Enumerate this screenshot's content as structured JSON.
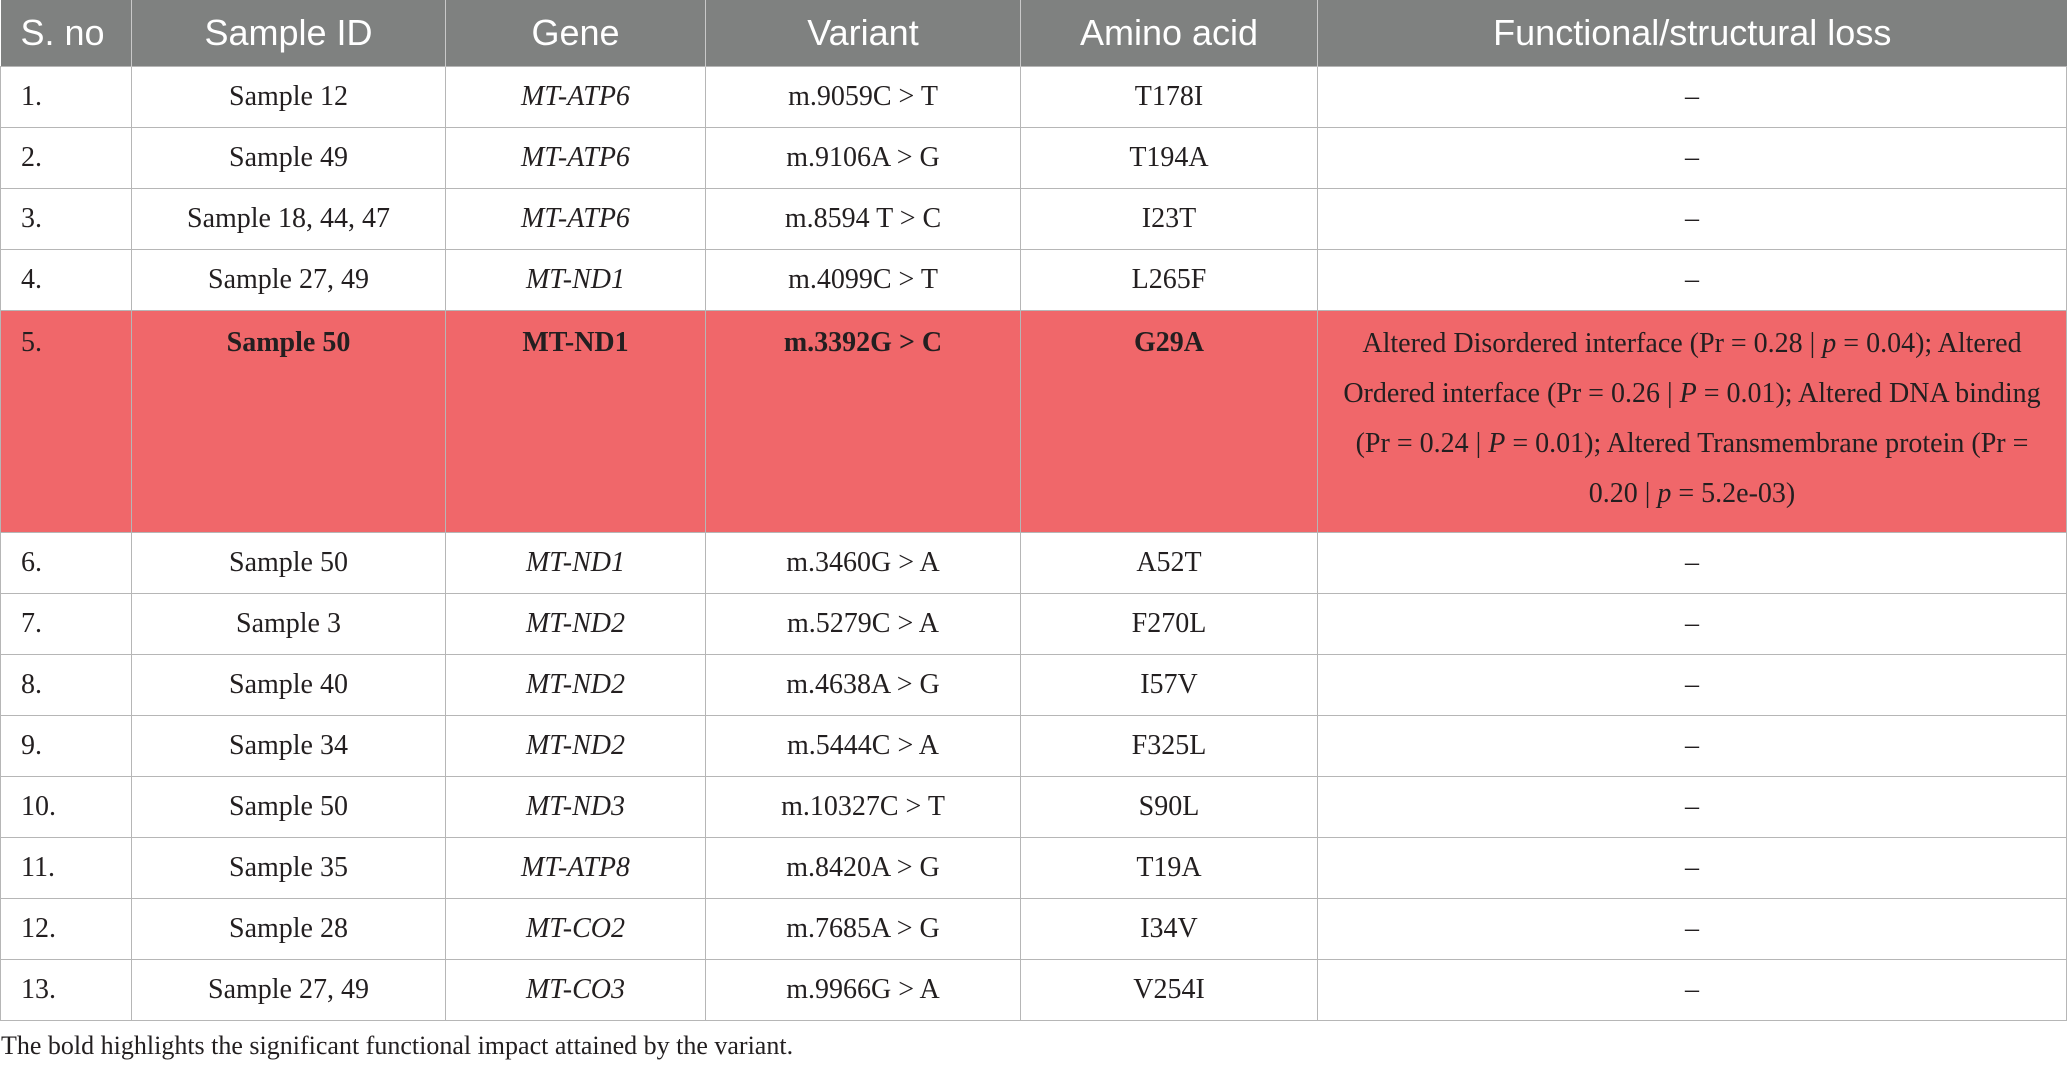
{
  "table": {
    "headers": [
      "S. no",
      "Sample ID",
      "Gene",
      "Variant",
      "Amino acid",
      "Functional/structural loss"
    ],
    "rows": [
      {
        "no": "1.",
        "sample": "Sample 12",
        "gene": "MT-ATP6",
        "variant": "m.9059C > T",
        "amino": "T178I",
        "effect": "–"
      },
      {
        "no": "2.",
        "sample": "Sample 49",
        "gene": "MT-ATP6",
        "variant": "m.9106A > G",
        "amino": "T194A",
        "effect": "–"
      },
      {
        "no": "3.",
        "sample": "Sample 18, 44, 47",
        "gene": "MT-ATP6",
        "variant": "m.8594 T > C",
        "amino": "I23T",
        "effect": "–"
      },
      {
        "no": "4.",
        "sample": "Sample 27, 49",
        "gene": "MT-ND1",
        "variant": "m.4099C > T",
        "amino": "L265F",
        "effect": "–"
      },
      {
        "no": "5.",
        "sample": "Sample 50",
        "gene": "MT-ND1",
        "variant": "m.3392G > C",
        "amino": "G29A",
        "effect": "Altered Disordered interface (Pr = 0.28 | p = 0.04); Altered Ordered interface (Pr = 0.26 | P = 0.01); Altered DNA binding (Pr = 0.24 | P = 0.01); Altered Transmembrane protein (Pr = 0.20 | p = 5.2e-03)",
        "highlight": true
      },
      {
        "no": "6.",
        "sample": "Sample 50",
        "gene": "MT-ND1",
        "variant": "m.3460G > A",
        "amino": "A52T",
        "effect": "–"
      },
      {
        "no": "7.",
        "sample": "Sample 3",
        "gene": "MT-ND2",
        "variant": "m.5279C > A",
        "amino": "F270L",
        "effect": "–"
      },
      {
        "no": "8.",
        "sample": "Sample 40",
        "gene": "MT-ND2",
        "variant": "m.4638A > G",
        "amino": "I57V",
        "effect": "–"
      },
      {
        "no": "9.",
        "sample": "Sample 34",
        "gene": "MT-ND2",
        "variant": "m.5444C > A",
        "amino": "F325L",
        "effect": "–"
      },
      {
        "no": "10.",
        "sample": "Sample 50",
        "gene": "MT-ND3",
        "variant": "m.10327C > T",
        "amino": "S90L",
        "effect": "–"
      },
      {
        "no": "11.",
        "sample": "Sample 35",
        "gene": "MT-ATP8",
        "variant": "m.8420A > G",
        "amino": "T19A",
        "effect": "–"
      },
      {
        "no": "12.",
        "sample": "Sample 28",
        "gene": "MT-CO2",
        "variant": "m.7685A > G",
        "amino": "I34V",
        "effect": "–"
      },
      {
        "no": "13.",
        "sample": "Sample 27, 49",
        "gene": "MT-CO3",
        "variant": "m.9966G > A",
        "amino": "V254I",
        "effect": "–"
      }
    ],
    "highlight_color": "#f0676a",
    "header_color": "#7f8180"
  },
  "footnote": "The bold highlights the significant functional impact attained by the variant."
}
